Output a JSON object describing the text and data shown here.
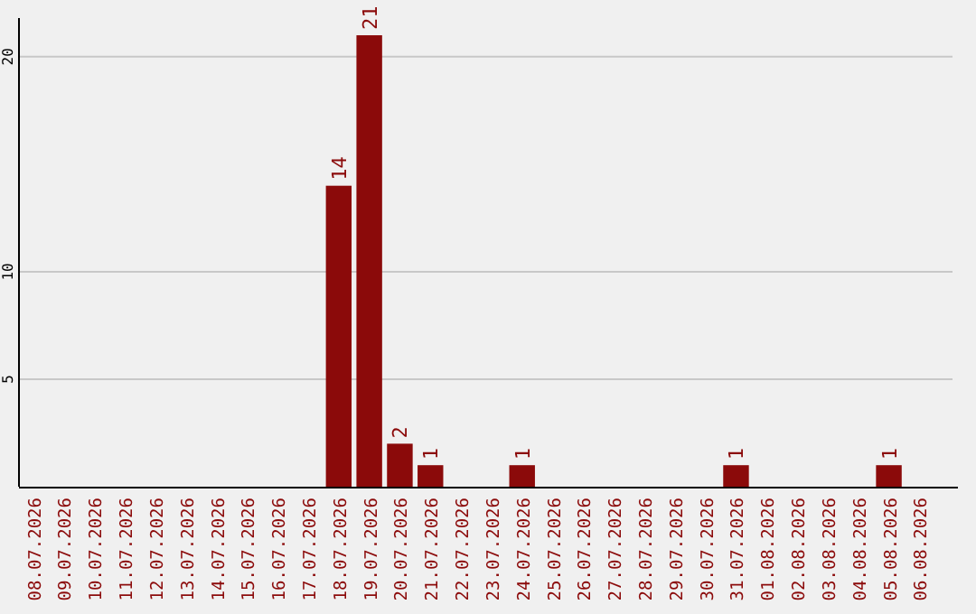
{
  "chart_data": {
    "type": "bar",
    "categories": [
      "08.07.2026",
      "09.07.2026",
      "10.07.2026",
      "11.07.2026",
      "12.07.2026",
      "13.07.2026",
      "14.07.2026",
      "15.07.2026",
      "16.07.2026",
      "17.07.2026",
      "18.07.2026",
      "19.07.2026",
      "20.07.2026",
      "21.07.2026",
      "22.07.2026",
      "23.07.2026",
      "24.07.2026",
      "25.07.2026",
      "26.07.2026",
      "27.07.2026",
      "28.07.2026",
      "29.07.2026",
      "30.07.2026",
      "31.07.2026",
      "01.08.2026",
      "02.08.2026",
      "03.08.2026",
      "04.08.2026",
      "05.08.2026",
      "06.08.2026"
    ],
    "values": [
      0,
      0,
      0,
      0,
      0,
      0,
      0,
      0,
      0,
      0,
      14,
      21,
      2,
      1,
      0,
      0,
      1,
      0,
      0,
      0,
      0,
      0,
      0,
      1,
      0,
      0,
      0,
      0,
      1,
      0
    ],
    "value_labels": [
      null,
      null,
      null,
      null,
      null,
      null,
      null,
      null,
      null,
      null,
      "14",
      "21",
      "2",
      "1",
      null,
      null,
      "1",
      null,
      null,
      null,
      null,
      null,
      null,
      "1",
      null,
      null,
      null,
      null,
      "1",
      null
    ],
    "color": "#8b0a0a",
    "ylim": [
      0,
      21.8
    ],
    "yticks": [
      5,
      10,
      20
    ],
    "grid": "y"
  }
}
